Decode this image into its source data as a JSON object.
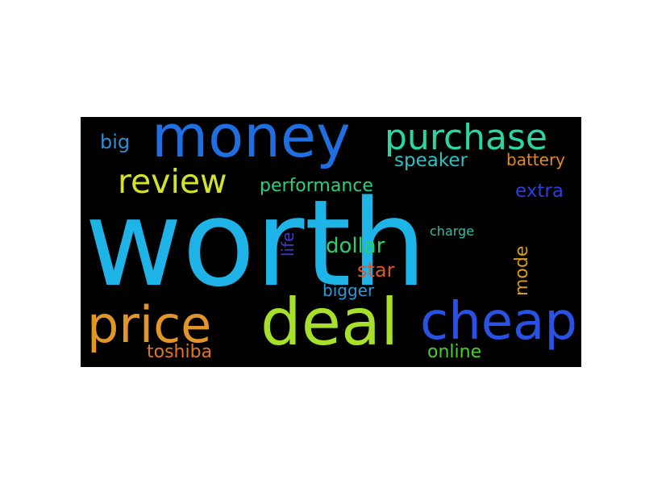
{
  "wordcloud": {
    "words": [
      {
        "key": "worth",
        "text": "worth",
        "color": "#1fb4e8"
      },
      {
        "key": "money",
        "text": "money",
        "color": "#1f6fe0"
      },
      {
        "key": "purchase",
        "text": "purchase",
        "color": "#2bd6a2"
      },
      {
        "key": "review",
        "text": "review",
        "color": "#d4e22a"
      },
      {
        "key": "performance",
        "text": "performance",
        "color": "#2bd07a"
      },
      {
        "key": "big",
        "text": "big",
        "color": "#2a8fd6"
      },
      {
        "key": "speaker",
        "text": "speaker",
        "color": "#2ac2c4"
      },
      {
        "key": "battery",
        "text": "battery",
        "color": "#e08a2a"
      },
      {
        "key": "extra",
        "text": "extra",
        "color": "#2a3ed8"
      },
      {
        "key": "life",
        "text": "life",
        "color": "#3a3ad8"
      },
      {
        "key": "dollar",
        "text": "dollar",
        "color": "#2bd06a"
      },
      {
        "key": "charge",
        "text": "charge",
        "color": "#2ac2a6"
      },
      {
        "key": "mode",
        "text": "mode",
        "color": "#d89a22"
      },
      {
        "key": "star",
        "text": "star",
        "color": "#e0562a"
      },
      {
        "key": "bigger",
        "text": "bigger",
        "color": "#2a9ad8"
      },
      {
        "key": "price",
        "text": "price",
        "color": "#e2962a"
      },
      {
        "key": "deal",
        "text": "deal",
        "color": "#a6e02a"
      },
      {
        "key": "cheap",
        "text": "cheap",
        "color": "#2a52e2"
      },
      {
        "key": "toshiba",
        "text": "toshiba",
        "color": "#e0762a"
      },
      {
        "key": "online",
        "text": "online",
        "color": "#4ad02a"
      }
    ]
  }
}
